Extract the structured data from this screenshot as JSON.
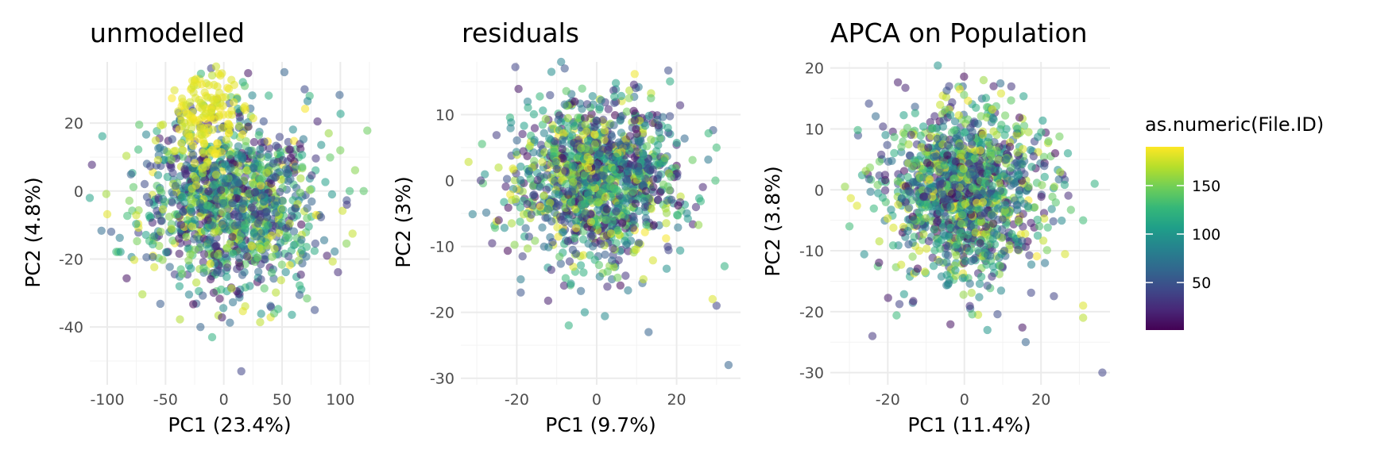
{
  "chart_data": [
    {
      "type": "scatter",
      "title": "unmodelled",
      "xlabel": "PC1 (23.4%)",
      "ylabel": "PC2 (4.8%)",
      "xlim": [
        -115,
        125
      ],
      "ylim": [
        -57,
        38
      ],
      "xticks": [
        -100,
        -50,
        0,
        50,
        100
      ],
      "yticks": [
        -40,
        -20,
        0,
        20
      ],
      "grid": true,
      "cloud": {
        "cx": 5,
        "cy": -3,
        "sx": 38,
        "sy": 13,
        "n": 1200
      },
      "yellow_cluster": {
        "cx": -15,
        "cy": 22,
        "sx": 14,
        "sy": 7,
        "n": 140
      },
      "points": [
        {
          "x": 15,
          "y": -53,
          "id": 40
        },
        {
          "x": 120,
          "y": 0,
          "id": 140
        },
        {
          "x": 108,
          "y": 0,
          "id": 130
        },
        {
          "x": -115,
          "y": -2,
          "id": 110
        },
        {
          "x": -25,
          "y": 32,
          "id": 185
        },
        {
          "x": -10,
          "y": 34,
          "id": 170
        },
        {
          "x": 52,
          "y": 35,
          "id": 60
        },
        {
          "x": 78,
          "y": -35,
          "id": 45
        },
        {
          "x": -20,
          "y": -40,
          "id": 60
        },
        {
          "x": -10,
          "y": -43,
          "id": 120
        },
        {
          "x": -38,
          "y": -28,
          "id": 110
        },
        {
          "x": 90,
          "y": 17,
          "id": 160
        },
        {
          "x": 100,
          "y": 12,
          "id": 150
        }
      ]
    },
    {
      "type": "scatter",
      "title": "residuals",
      "xlabel": "PC1 (9.7%)",
      "ylabel": "PC2 (3%)",
      "xlim": [
        -34,
        36
      ],
      "ylim": [
        -31,
        18
      ],
      "xticks": [
        -20,
        0,
        20
      ],
      "yticks": [
        -30,
        -20,
        -10,
        0,
        10
      ],
      "grid": true,
      "cloud": {
        "cx": 0,
        "cy": 0,
        "sx": 10,
        "sy": 6,
        "n": 1300
      },
      "points": [
        {
          "x": 33,
          "y": -28,
          "id": 60
        },
        {
          "x": -19,
          "y": -17,
          "id": 50
        },
        {
          "x": -19,
          "y": -15,
          "id": 80
        },
        {
          "x": -7,
          "y": -22,
          "id": 120
        },
        {
          "x": -3,
          "y": -20,
          "id": 100
        },
        {
          "x": 13,
          "y": -23,
          "id": 60
        },
        {
          "x": 30,
          "y": -19,
          "id": 40
        },
        {
          "x": 29,
          "y": -18,
          "id": 180
        },
        {
          "x": 32,
          "y": -13,
          "id": 120
        },
        {
          "x": -8,
          "y": 17,
          "id": 50
        },
        {
          "x": -29,
          "y": 0,
          "id": 30
        },
        {
          "x": 30,
          "y": 5,
          "id": 130
        }
      ]
    },
    {
      "type": "scatter",
      "title": "APCA on Population",
      "xlabel": "PC1 (11.4%)",
      "ylabel": "PC2 (3.8%)",
      "xlim": [
        -35,
        38
      ],
      "ylim": [
        -32,
        21
      ],
      "xticks": [
        -20,
        0,
        20
      ],
      "yticks": [
        -30,
        -20,
        -10,
        0,
        10,
        20
      ],
      "grid": true,
      "cloud": {
        "cx": 0,
        "cy": 0,
        "sx": 10,
        "sy": 7,
        "n": 1300
      },
      "points": [
        {
          "x": 36,
          "y": -30,
          "id": 40
        },
        {
          "x": -24,
          "y": -24,
          "id": 30
        },
        {
          "x": 16,
          "y": -25,
          "id": 60
        },
        {
          "x": 6,
          "y": -23,
          "id": 100
        },
        {
          "x": -30,
          "y": -6,
          "id": 130
        },
        {
          "x": 34,
          "y": 1,
          "id": 120
        },
        {
          "x": 27,
          "y": 6,
          "id": 110
        },
        {
          "x": 31,
          "y": -21,
          "id": 170
        },
        {
          "x": 31,
          "y": -19,
          "id": 180
        },
        {
          "x": -4,
          "y": 17,
          "id": 40
        },
        {
          "x": 5,
          "y": 18,
          "id": 160
        },
        {
          "x": 31,
          "y": -5,
          "id": 130
        }
      ]
    }
  ],
  "legend": {
    "title": "as.numeric(File.ID)",
    "min": 1,
    "max": 190,
    "breaks": [
      50,
      100,
      150
    ],
    "palette": [
      "#440154",
      "#482878",
      "#3e4989",
      "#31688e",
      "#26828e",
      "#1f9e89",
      "#35b779",
      "#6ece58",
      "#b5de2b",
      "#fde725"
    ]
  }
}
